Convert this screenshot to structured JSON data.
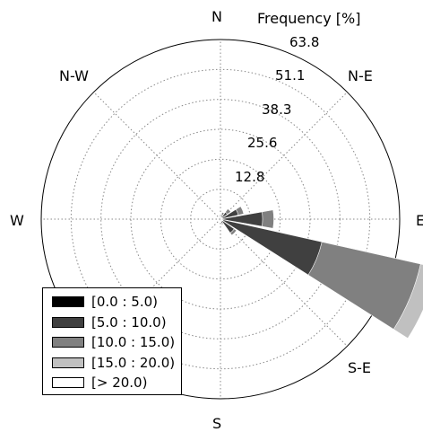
{
  "chart_data": {
    "type": "windrose",
    "radial_axis_title": "Frequency [%]",
    "radial_ticks": [
      "12.8",
      "25.6",
      "38.3",
      "51.1",
      "63.8"
    ],
    "rmax": 63.8,
    "directions": [
      "N",
      "N-E",
      "E",
      "S-E",
      "S",
      "S-W",
      "W",
      "N-W"
    ],
    "legend": {
      "placement": "lower-left",
      "entries": [
        {
          "label": "[0.0 : 5.0)",
          "color": "#000000"
        },
        {
          "label": "[5.0 : 10.0)",
          "color": "#404040"
        },
        {
          "label": "[10.0 : 15.0)",
          "color": "#808080"
        },
        {
          "label": "[15.0 : 20.0)",
          "color": "#c0c0c0"
        },
        {
          "label": "[> 20.0)",
          "color": "#ffffff"
        }
      ]
    },
    "sectors": [
      {
        "direction_deg": 0,
        "cumulative": [
          0.5,
          1.2,
          1.6,
          1.6,
          1.6
        ]
      },
      {
        "direction_deg": 22.5,
        "cumulative": [
          0.6,
          1.5,
          2.5,
          2.5,
          2.5
        ]
      },
      {
        "direction_deg": 45,
        "cumulative": [
          0.6,
          3.0,
          4.5,
          4.5,
          4.5
        ]
      },
      {
        "direction_deg": 67.5,
        "cumulative": [
          0.6,
          6.5,
          8.5,
          8.5,
          8.5
        ]
      },
      {
        "direction_deg": 90,
        "cumulative": [
          0.6,
          15.0,
          19.0,
          19.0,
          19.0
        ]
      },
      {
        "direction_deg": 112.5,
        "cumulative": [
          1.0,
          37.0,
          73.0,
          79.0,
          79.0
        ]
      },
      {
        "direction_deg": 135,
        "cumulative": [
          0.8,
          6.0,
          7.0,
          7.0,
          7.0
        ]
      },
      {
        "direction_deg": 157.5,
        "cumulative": [
          0.5,
          1.5,
          2.0,
          2.0,
          2.0
        ]
      },
      {
        "direction_deg": 180,
        "cumulative": [
          0.3,
          0.8,
          0.8,
          0.8,
          0.8
        ]
      }
    ]
  }
}
